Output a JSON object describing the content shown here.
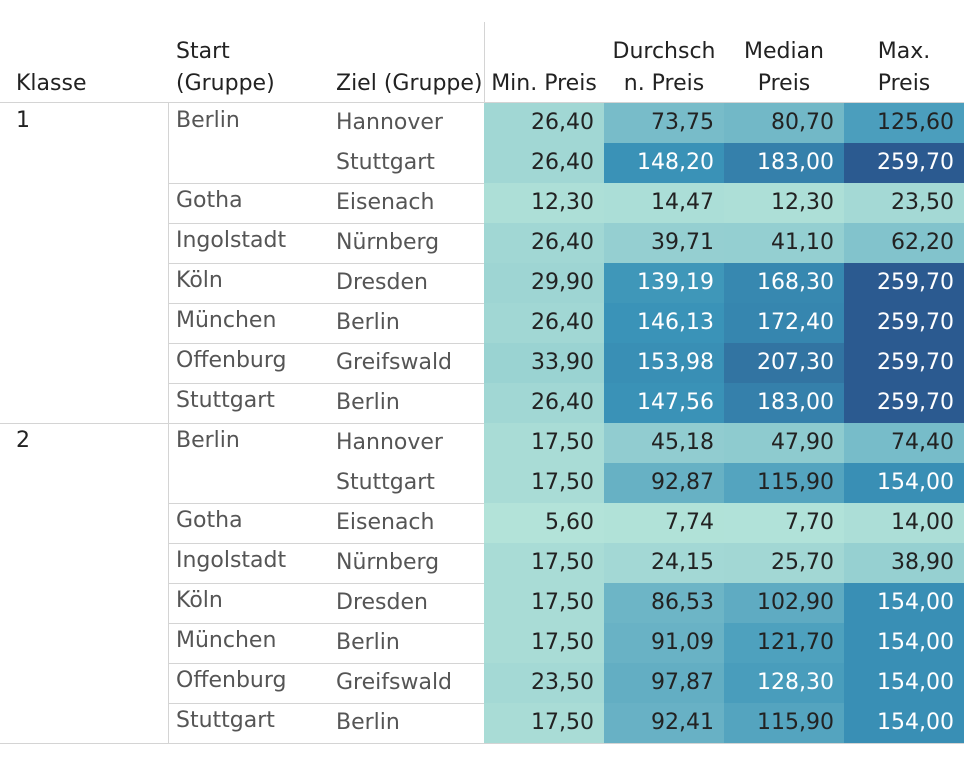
{
  "headers": {
    "klasse": "Klasse",
    "start_line1": "Start",
    "start_line2": "(Gruppe)",
    "ziel": "Ziel (Gruppe)",
    "min": "Min. Preis",
    "avg_line1": "Durchsch",
    "avg_line2": "n. Preis",
    "median_line1": "Median",
    "median_line2": "Preis",
    "max_line1": "Max.",
    "max_line2": "Preis"
  },
  "chart_data": {
    "type": "table",
    "columns": [
      "Klasse",
      "Start (Gruppe)",
      "Ziel (Gruppe)",
      "Min. Preis",
      "Durchschn. Preis",
      "Median Preis",
      "Max. Preis"
    ],
    "rows": [
      {
        "klasse": "1",
        "start": "Berlin",
        "ziel": "Hannover",
        "values": [
          "26,40",
          "73,75",
          "80,70",
          "125,60"
        ]
      },
      {
        "klasse": "",
        "start": "",
        "ziel": "Stuttgart",
        "values": [
          "26,40",
          "148,20",
          "183,00",
          "259,70"
        ]
      },
      {
        "klasse": "",
        "start": "Gotha",
        "ziel": "Eisenach",
        "values": [
          "12,30",
          "14,47",
          "12,30",
          "23,50"
        ]
      },
      {
        "klasse": "",
        "start": "Ingolstadt",
        "ziel": "Nürnberg",
        "values": [
          "26,40",
          "39,71",
          "41,10",
          "62,20"
        ]
      },
      {
        "klasse": "",
        "start": "Köln",
        "ziel": "Dresden",
        "values": [
          "29,90",
          "139,19",
          "168,30",
          "259,70"
        ]
      },
      {
        "klasse": "",
        "start": "München",
        "ziel": "Berlin",
        "values": [
          "26,40",
          "146,13",
          "172,40",
          "259,70"
        ]
      },
      {
        "klasse": "",
        "start": "Offenburg",
        "ziel": "Greifswald",
        "values": [
          "33,90",
          "153,98",
          "207,30",
          "259,70"
        ]
      },
      {
        "klasse": "",
        "start": "Stuttgart",
        "ziel": "Berlin",
        "values": [
          "26,40",
          "147,56",
          "183,00",
          "259,70"
        ]
      },
      {
        "klasse": "2",
        "start": "Berlin",
        "ziel": "Hannover",
        "values": [
          "17,50",
          "45,18",
          "47,90",
          "74,40"
        ]
      },
      {
        "klasse": "",
        "start": "",
        "ziel": "Stuttgart",
        "values": [
          "17,50",
          "92,87",
          "115,90",
          "154,00"
        ]
      },
      {
        "klasse": "",
        "start": "Gotha",
        "ziel": "Eisenach",
        "values": [
          "5,60",
          "7,74",
          "7,70",
          "14,00"
        ]
      },
      {
        "klasse": "",
        "start": "Ingolstadt",
        "ziel": "Nürnberg",
        "values": [
          "17,50",
          "24,15",
          "25,70",
          "38,90"
        ]
      },
      {
        "klasse": "",
        "start": "Köln",
        "ziel": "Dresden",
        "values": [
          "17,50",
          "86,53",
          "102,90",
          "154,00"
        ]
      },
      {
        "klasse": "",
        "start": "München",
        "ziel": "Berlin",
        "values": [
          "17,50",
          "91,09",
          "121,70",
          "154,00"
        ]
      },
      {
        "klasse": "",
        "start": "Offenburg",
        "ziel": "Greifswald",
        "values": [
          "23,50",
          "97,87",
          "128,30",
          "154,00"
        ]
      },
      {
        "klasse": "",
        "start": "Stuttgart",
        "ziel": "Berlin",
        "values": [
          "17,50",
          "92,41",
          "115,90",
          "154,00"
        ]
      }
    ],
    "color_scale": {
      "low": "#b3e3d9",
      "mid": "#3a93b8",
      "high": "#2b5a90",
      "text_light": "#ffffff",
      "text_dark": "#222222"
    }
  }
}
